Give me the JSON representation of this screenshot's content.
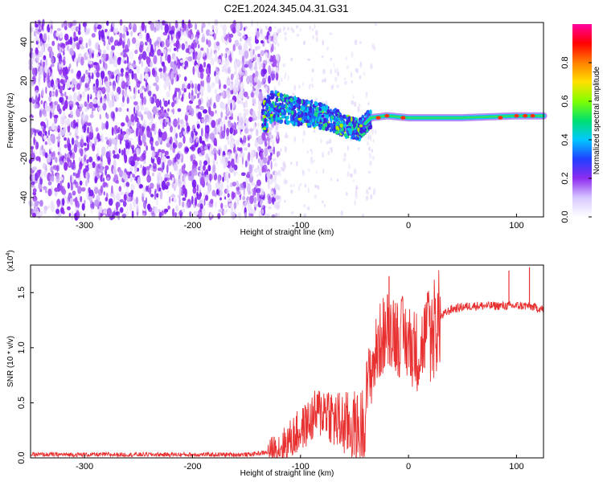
{
  "title": "C2E1.2024.345.04.31.G31",
  "chart_data": [
    {
      "type": "heatmap",
      "xlabel": "Height of straight line (km)",
      "ylabel": "Frequency (Hz)",
      "xlim": [
        -350,
        125
      ],
      "ylim": [
        -50,
        50
      ],
      "xticks": [
        -300,
        -200,
        -100,
        0,
        100
      ],
      "yticks": [
        -40,
        -20,
        0,
        20,
        40
      ],
      "colorbar": {
        "label": "Normalized spectral amplitude",
        "range": [
          0.0,
          1.0
        ],
        "ticks": [
          "0.0",
          "0.2",
          "0.4",
          "0.6",
          "0.8"
        ],
        "colors": [
          "#ffffff",
          "#d8c8ff",
          "#8e2cf0",
          "#2040ff",
          "#00c8ff",
          "#00e070",
          "#80ff00",
          "#ffe000",
          "#ff8000",
          "#ff0000",
          "#ff00a0"
        ]
      },
      "signal_trace": {
        "description_points": [
          [
            -130,
            7
          ],
          [
            -110,
            5
          ],
          [
            -90,
            3
          ],
          [
            -70,
            0
          ],
          [
            -55,
            -4
          ],
          [
            -45,
            -5
          ],
          [
            -35,
            1
          ],
          [
            -20,
            2
          ],
          [
            0,
            1
          ],
          [
            50,
            1
          ],
          [
            100,
            2
          ],
          [
            125,
            2
          ]
        ]
      },
      "noise_region": {
        "x_from": -350,
        "x_to": -130
      }
    },
    {
      "type": "line",
      "xlabel": "Height of straight line (km)",
      "ylabel": "SNR (10 * v/v)",
      "y_multiplier": "(x10",
      "y_multiplier_exp": "4",
      "y_multiplier_close": ")",
      "xlim": [
        -350,
        125
      ],
      "ylim": [
        0,
        1.75
      ],
      "xticks": [
        -300,
        -200,
        -100,
        0,
        100
      ],
      "yticks": [
        "0.0",
        "0.5",
        "1.0",
        "1.5"
      ],
      "color": "#e83030",
      "series": [
        {
          "values": [
            [
              -350,
              0.03
            ],
            [
              -300,
              0.03
            ],
            [
              -250,
              0.03
            ],
            [
              -200,
              0.03
            ],
            [
              -150,
              0.03
            ],
            [
              -130,
              0.05
            ],
            [
              -115,
              0.12
            ],
            [
              -100,
              0.25
            ],
            [
              -85,
              0.4
            ],
            [
              -75,
              0.45
            ],
            [
              -70,
              0.35
            ],
            [
              -60,
              0.3
            ],
            [
              -50,
              0.28
            ],
            [
              -45,
              0.25
            ],
            [
              -40,
              0.4
            ],
            [
              -35,
              0.65
            ],
            [
              -30,
              0.8
            ],
            [
              -25,
              0.95
            ],
            [
              -20,
              1.0
            ],
            [
              -15,
              1.05
            ],
            [
              -10,
              0.95
            ],
            [
              -5,
              0.95
            ],
            [
              0,
              0.9
            ],
            [
              5,
              0.85
            ],
            [
              10,
              0.8
            ],
            [
              15,
              0.95
            ],
            [
              20,
              1.1
            ],
            [
              25,
              1.2
            ],
            [
              30,
              1.28
            ],
            [
              35,
              1.32
            ],
            [
              40,
              1.35
            ],
            [
              50,
              1.37
            ],
            [
              60,
              1.38
            ],
            [
              70,
              1.38
            ],
            [
              80,
              1.38
            ],
            [
              90,
              1.38
            ],
            [
              100,
              1.38
            ],
            [
              110,
              1.38
            ],
            [
              125,
              1.35
            ]
          ]
        }
      ],
      "spikes": [
        {
          "x": -18,
          "y": 1.65
        },
        {
          "x": 93,
          "y": 1.7
        },
        {
          "x": 112,
          "y": 1.73
        }
      ]
    }
  ]
}
